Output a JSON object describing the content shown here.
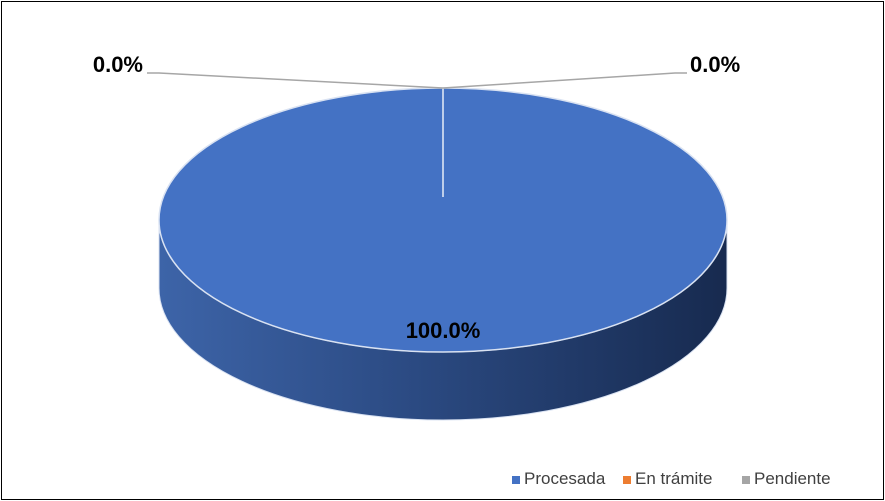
{
  "chart_data": {
    "type": "pie",
    "style": "3d",
    "categories": [
      "Procesada",
      "En trámite",
      "Pendiente"
    ],
    "values": [
      100.0,
      0.0,
      0.0
    ],
    "data_labels": [
      "100.0%",
      "0.0%",
      "0.0%"
    ],
    "colors": [
      "#4472C4",
      "#ED7D31",
      "#A5A5A5"
    ],
    "legend_position": "bottom-right"
  }
}
